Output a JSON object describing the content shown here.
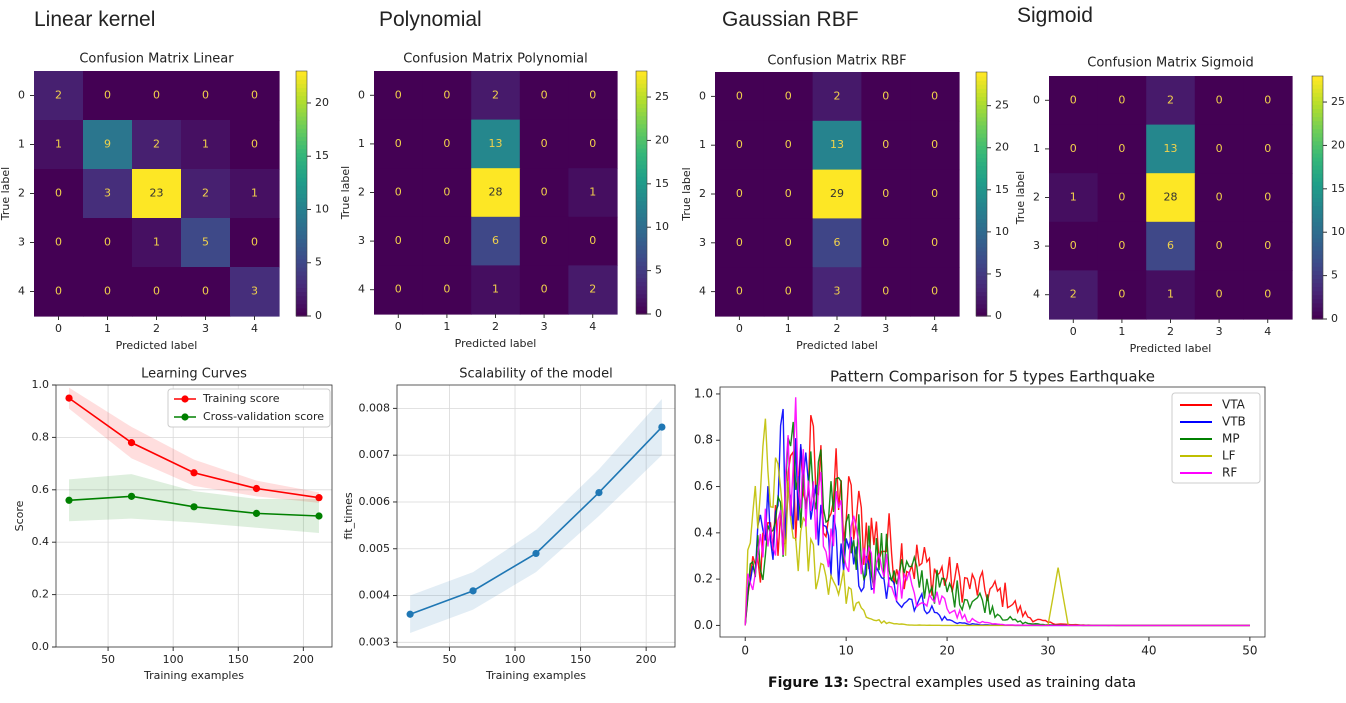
{
  "headings": [
    "Linear kernel",
    "Polynomial",
    "Gaussian RBF",
    "Sigmoid"
  ],
  "caption": {
    "bold": "Figure 13:",
    "text": " Spectral examples used as training data"
  },
  "colormap": "viridis",
  "chart_data": [
    {
      "type": "heatmap",
      "title": "Confusion Matrix Linear",
      "xlabel": "Predicted label",
      "ylabel": "True label",
      "x_ticks": [
        "0",
        "1",
        "2",
        "3",
        "4"
      ],
      "y_ticks": [
        "0",
        "1",
        "2",
        "3",
        "4"
      ],
      "matrix": [
        [
          2,
          0,
          0,
          0,
          0
        ],
        [
          1,
          9,
          2,
          1,
          0
        ],
        [
          0,
          3,
          23,
          2,
          1
        ],
        [
          0,
          0,
          1,
          5,
          0
        ],
        [
          0,
          0,
          0,
          0,
          3
        ]
      ],
      "vmin": 0,
      "vmax": 23,
      "colorbar_ticks": [
        0,
        5,
        10,
        15,
        20
      ]
    },
    {
      "type": "heatmap",
      "title": "Confusion Matrix Polynomial",
      "xlabel": "Predicted label",
      "ylabel": "True label",
      "x_ticks": [
        "0",
        "1",
        "2",
        "3",
        "4"
      ],
      "y_ticks": [
        "0",
        "1",
        "2",
        "3",
        "4"
      ],
      "matrix": [
        [
          0,
          0,
          2,
          0,
          0
        ],
        [
          0,
          0,
          13,
          0,
          0
        ],
        [
          0,
          0,
          28,
          0,
          1
        ],
        [
          0,
          0,
          6,
          0,
          0
        ],
        [
          0,
          0,
          1,
          0,
          2
        ]
      ],
      "vmin": 0,
      "vmax": 28,
      "colorbar_ticks": [
        0,
        5,
        10,
        15,
        20,
        25
      ]
    },
    {
      "type": "heatmap",
      "title": "Confusion Matrix RBF",
      "xlabel": "Predicted label",
      "ylabel": "True label",
      "x_ticks": [
        "0",
        "1",
        "2",
        "3",
        "4"
      ],
      "y_ticks": [
        "0",
        "1",
        "2",
        "3",
        "4"
      ],
      "matrix": [
        [
          0,
          0,
          2,
          0,
          0
        ],
        [
          0,
          0,
          13,
          0,
          0
        ],
        [
          0,
          0,
          29,
          0,
          0
        ],
        [
          0,
          0,
          6,
          0,
          0
        ],
        [
          0,
          0,
          3,
          0,
          0
        ]
      ],
      "vmin": 0,
      "vmax": 29,
      "colorbar_ticks": [
        0,
        5,
        10,
        15,
        20,
        25
      ]
    },
    {
      "type": "heatmap",
      "title": "Confusion Matrix Sigmoid",
      "xlabel": "Predicted label",
      "ylabel": "True label",
      "x_ticks": [
        "0",
        "1",
        "2",
        "3",
        "4"
      ],
      "y_ticks": [
        "0",
        "1",
        "2",
        "3",
        "4"
      ],
      "matrix": [
        [
          0,
          0,
          2,
          0,
          0
        ],
        [
          0,
          0,
          13,
          0,
          0
        ],
        [
          1,
          0,
          28,
          0,
          0
        ],
        [
          0,
          0,
          6,
          0,
          0
        ],
        [
          2,
          0,
          1,
          0,
          0
        ]
      ],
      "vmin": 0,
      "vmax": 28,
      "colorbar_ticks": [
        0,
        5,
        10,
        15,
        20,
        25
      ]
    },
    {
      "type": "line",
      "title": "Learning Curves",
      "xlabel": "Training examples",
      "ylabel": "Score",
      "xlim": [
        10,
        222
      ],
      "ylim": [
        0,
        1
      ],
      "x_ticks": [
        50,
        100,
        150,
        200
      ],
      "y_ticks": [
        0.0,
        0.2,
        0.4,
        0.6,
        0.8,
        1.0
      ],
      "grid": true,
      "legend_position": "top-right",
      "x": [
        20,
        68,
        116,
        164,
        212
      ],
      "series": [
        {
          "name": "Training score",
          "color": "#ff0000",
          "values": [
            0.95,
            0.78,
            0.665,
            0.605,
            0.57
          ],
          "band_lower": [
            0.91,
            0.72,
            0.615,
            0.575,
            0.55
          ],
          "band_upper": [
            0.99,
            0.84,
            0.715,
            0.635,
            0.59
          ]
        },
        {
          "name": "Cross-validation score",
          "color": "#008000",
          "values": [
            0.56,
            0.575,
            0.535,
            0.51,
            0.5
          ],
          "band_lower": [
            0.48,
            0.49,
            0.475,
            0.455,
            0.435
          ],
          "band_upper": [
            0.64,
            0.66,
            0.595,
            0.565,
            0.565
          ]
        }
      ]
    },
    {
      "type": "line",
      "title": "Scalability of the model",
      "xlabel": "Training examples",
      "ylabel": "fit_times",
      "xlim": [
        10,
        222
      ],
      "ylim": [
        0.0029,
        0.0085
      ],
      "x_ticks": [
        50,
        100,
        150,
        200
      ],
      "y_ticks": [
        0.003,
        0.004,
        0.005,
        0.006,
        0.007,
        0.008
      ],
      "grid": true,
      "x": [
        20,
        68,
        116,
        164,
        212
      ],
      "series": [
        {
          "color": "#1f77b4",
          "values": [
            0.0036,
            0.0041,
            0.0049,
            0.0062,
            0.0076
          ],
          "band_lower": [
            0.0032,
            0.0037,
            0.0045,
            0.0057,
            0.007
          ],
          "band_upper": [
            0.004,
            0.0045,
            0.0054,
            0.0067,
            0.0082
          ]
        }
      ]
    },
    {
      "type": "line",
      "title": "Pattern Comparison for 5 types Earthquake",
      "xlabel": "",
      "ylabel": "",
      "xlim": [
        -2.5,
        51.5
      ],
      "ylim": [
        -0.05,
        1.03
      ],
      "x_ticks": [
        0,
        10,
        20,
        30,
        40,
        50
      ],
      "y_ticks": [
        0.0,
        0.2,
        0.4,
        0.6,
        0.8,
        1.0
      ],
      "grid": false,
      "legend_position": "top-right",
      "series": [
        {
          "name": "VTA",
          "color": "#ff0000"
        },
        {
          "name": "VTB",
          "color": "#0000ff"
        },
        {
          "name": "MP",
          "color": "#008000"
        },
        {
          "name": "LF",
          "color": "#bfbf00"
        },
        {
          "name": "RF",
          "color": "#ff00ff"
        }
      ]
    }
  ]
}
